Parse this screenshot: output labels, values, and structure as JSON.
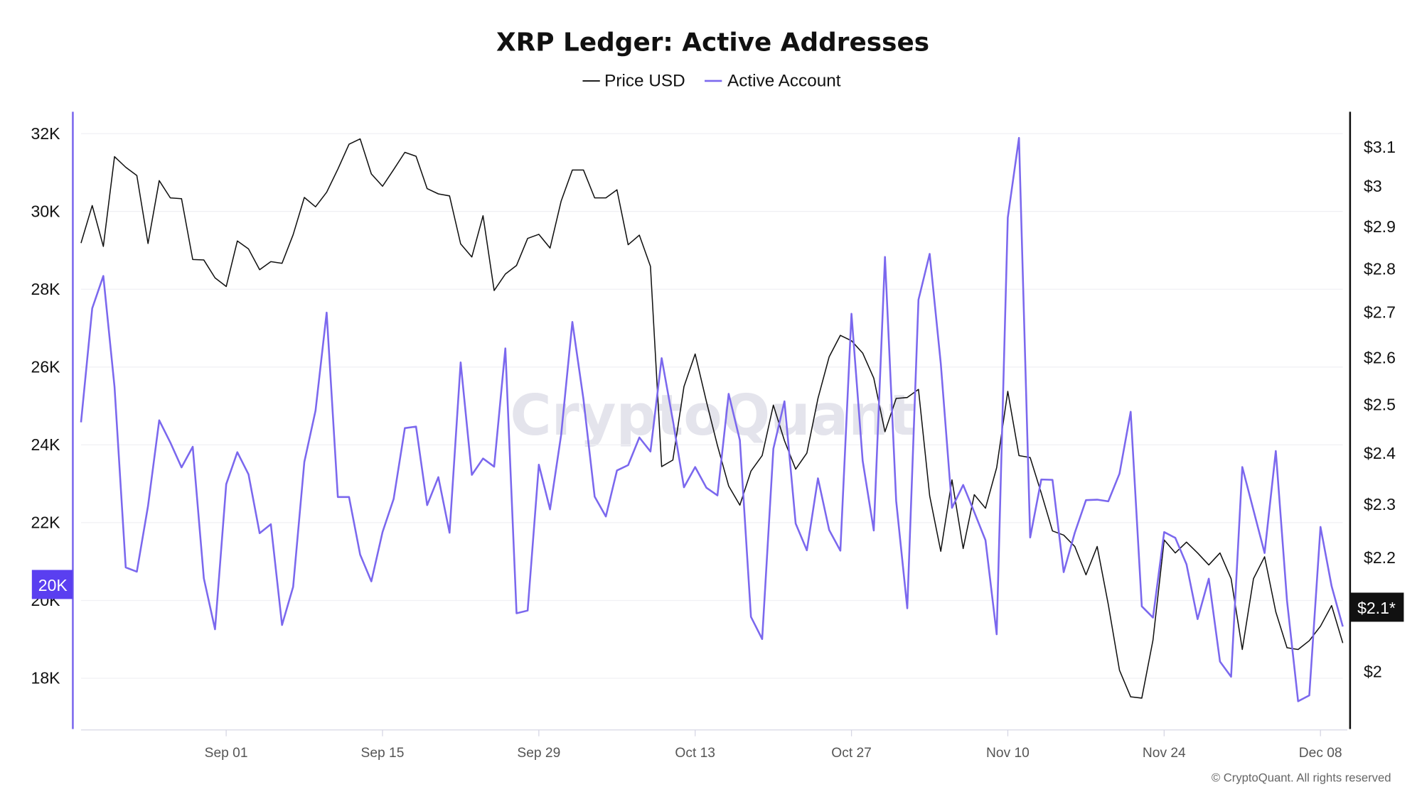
{
  "chart_data": {
    "type": "line",
    "title": "XRP Ledger: Active Addresses",
    "legend": {
      "position": "top-center",
      "entries": [
        "Price USD",
        "Active Account"
      ]
    },
    "watermark": "CryptoQuant",
    "copyright": "© CryptoQuant. All rights reserved",
    "colors": {
      "price": "#111111",
      "active": "#7b68ee",
      "active_marker": "#5a3ff0",
      "price_marker": "#111111"
    },
    "grid": true,
    "x_tick_labels": [
      "Sep 01",
      "Sep 15",
      "Sep 29",
      "Oct 13",
      "Oct 27",
      "Nov 10",
      "Nov 24",
      "Dec 08"
    ],
    "left_axis": {
      "scale": "linear",
      "ylim": [
        16700,
        32600
      ],
      "ticks": [
        18000,
        20000,
        22000,
        24000,
        26000,
        28000,
        30000,
        32000
      ],
      "tick_labels": [
        "18K",
        "20K",
        "22K",
        "24K",
        "26K",
        "28K",
        "30K",
        "32K"
      ],
      "marker_label": "20K",
      "marker_value": 20000
    },
    "right_axis": {
      "scale": "log",
      "ylim": [
        1.91,
        3.2
      ],
      "ticks": [
        2,
        2.1,
        2.2,
        2.3,
        2.4,
        2.5,
        2.6,
        2.7,
        2.8,
        2.9,
        3,
        3.1
      ],
      "tick_labels": [
        "$2",
        "",
        "$2.2",
        "$2.3",
        "$2.4",
        "$2.5",
        "$2.6",
        "$2.7",
        "$2.8",
        "$2.9",
        "$3",
        "$3.1"
      ],
      "marker_label": "$2.1*",
      "marker_value": 2.11
    },
    "x": [
      "Aug 19",
      "Aug 20",
      "Aug 21",
      "Aug 22",
      "Aug 23",
      "Aug 24",
      "Aug 25",
      "Aug 26",
      "Aug 27",
      "Aug 28",
      "Aug 29",
      "Aug 30",
      "Aug 31",
      "Sep 01",
      "Sep 02",
      "Sep 03",
      "Sep 04",
      "Sep 05",
      "Sep 06",
      "Sep 07",
      "Sep 08",
      "Sep 09",
      "Sep 10",
      "Sep 11",
      "Sep 12",
      "Sep 13",
      "Sep 14",
      "Sep 15",
      "Sep 16",
      "Sep 17",
      "Sep 18",
      "Sep 19",
      "Sep 20",
      "Sep 21",
      "Sep 22",
      "Sep 23",
      "Sep 24",
      "Sep 25",
      "Sep 26",
      "Sep 27",
      "Sep 28",
      "Sep 29",
      "Sep 30",
      "Oct 01",
      "Oct 02",
      "Oct 03",
      "Oct 04",
      "Oct 05",
      "Oct 06",
      "Oct 07",
      "Oct 08",
      "Oct 09",
      "Oct 10",
      "Oct 11",
      "Oct 12",
      "Oct 13",
      "Oct 14",
      "Oct 15",
      "Oct 16",
      "Oct 17",
      "Oct 18",
      "Oct 19",
      "Oct 20",
      "Oct 21",
      "Oct 22",
      "Oct 23",
      "Oct 24",
      "Oct 25",
      "Oct 26",
      "Oct 27",
      "Oct 28",
      "Oct 29",
      "Oct 30",
      "Oct 31",
      "Nov 01",
      "Nov 02",
      "Nov 03",
      "Nov 04",
      "Nov 05",
      "Nov 06",
      "Nov 07",
      "Nov 08",
      "Nov 09",
      "Nov 10",
      "Nov 11",
      "Nov 12",
      "Nov 13",
      "Nov 14",
      "Nov 15",
      "Nov 16",
      "Nov 17",
      "Nov 18",
      "Nov 19",
      "Nov 20",
      "Nov 21",
      "Nov 22",
      "Nov 23",
      "Nov 24",
      "Nov 25",
      "Nov 26",
      "Nov 27",
      "Nov 28",
      "Nov 29",
      "Nov 30",
      "Dec 01",
      "Dec 02",
      "Dec 03",
      "Dec 04",
      "Dec 05",
      "Dec 06",
      "Dec 07",
      "Dec 08",
      "Dec 09",
      "Dec 10"
    ],
    "series": [
      {
        "name": "Price USD",
        "axis": "right",
        "values": [
          2.859,
          2.95,
          2.851,
          3.073,
          3.046,
          3.025,
          2.858,
          3.012,
          2.969,
          2.967,
          2.82,
          2.819,
          2.777,
          2.757,
          2.864,
          2.845,
          2.796,
          2.815,
          2.811,
          2.879,
          2.97,
          2.947,
          2.983,
          3.041,
          3.105,
          3.119,
          3.029,
          2.998,
          3.04,
          3.084,
          3.074,
          2.992,
          2.979,
          2.974,
          2.857,
          2.826,
          2.925,
          2.748,
          2.786,
          2.806,
          2.87,
          2.88,
          2.847,
          2.961,
          3.039,
          3.039,
          2.969,
          2.969,
          2.989,
          2.855,
          2.878,
          2.804,
          2.372,
          2.385,
          2.536,
          2.606,
          2.505,
          2.414,
          2.334,
          2.297,
          2.363,
          2.394,
          2.497,
          2.424,
          2.367,
          2.399,
          2.511,
          2.6,
          2.647,
          2.635,
          2.608,
          2.554,
          2.442,
          2.511,
          2.513,
          2.53,
          2.315,
          2.21,
          2.346,
          2.215,
          2.317,
          2.291,
          2.37,
          2.526,
          2.394,
          2.39,
          2.32,
          2.248,
          2.24,
          2.219,
          2.167,
          2.219,
          2.114,
          2.001,
          1.957,
          1.955,
          2.052,
          2.231,
          2.207,
          2.227,
          2.207,
          2.185,
          2.207,
          2.16,
          2.036,
          2.16,
          2.2,
          2.101,
          2.039,
          2.036,
          2.051,
          2.076,
          2.112,
          2.047
        ]
      },
      {
        "name": "Active Account",
        "axis": "left",
        "values": [
          24580,
          27510,
          28340,
          25490,
          20850,
          20740,
          22430,
          24630,
          24060,
          23420,
          23950,
          20570,
          19260,
          22990,
          23810,
          23240,
          21730,
          21960,
          19370,
          20350,
          23560,
          24880,
          27400,
          22660,
          22660,
          21180,
          20490,
          21760,
          22610,
          24430,
          24470,
          22450,
          23170,
          21740,
          26120,
          23230,
          23650,
          23440,
          26480,
          19670,
          19740,
          23490,
          22340,
          24260,
          27160,
          25170,
          22670,
          22160,
          23340,
          23480,
          24190,
          23830,
          26230,
          24630,
          22910,
          23430,
          22900,
          22700,
          25310,
          24120,
          19580,
          19010,
          23900,
          25120,
          21980,
          21290,
          23140,
          21810,
          21280,
          27370,
          23590,
          21800,
          28830,
          22560,
          19800,
          27730,
          28910,
          26090,
          22380,
          22970,
          22270,
          21550,
          19130,
          29840,
          31890,
          21620,
          23110,
          23100,
          20730,
          21740,
          22580,
          22590,
          22550,
          23260,
          24850,
          19850,
          19560,
          21760,
          21610,
          20930,
          19520,
          20560,
          18430,
          18040,
          23430,
          22320,
          21220,
          23840,
          20000,
          17410,
          17560,
          21890,
          20370,
          19330
        ]
      }
    ]
  }
}
